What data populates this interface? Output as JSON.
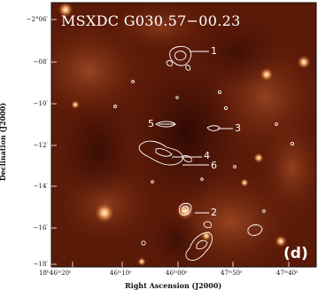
{
  "figure": {
    "title": "MSXDC G030.57−00.23",
    "panel_label": "(d)",
    "x_axis_title": "Right Ascension (J2000)",
    "y_axis_title": "Declination (J2000)",
    "x_ticks": [
      "18ʰ46ᵐ20ˢ",
      "46ᵐ10ˢ",
      "46ᵐ00ˢ",
      "47ᵐ50ˢ",
      "47ᵐ40ˢ"
    ],
    "y_ticks": [
      "−2°06′",
      "−08′",
      "−10′",
      "−12′",
      "−14′",
      "−16′",
      "−18′"
    ],
    "sources": [
      "1",
      "2",
      "3",
      "4",
      "5",
      "6"
    ],
    "colors": {
      "background": "#5a1a08",
      "contour": "#ffffff",
      "label": "#ffffff"
    }
  }
}
